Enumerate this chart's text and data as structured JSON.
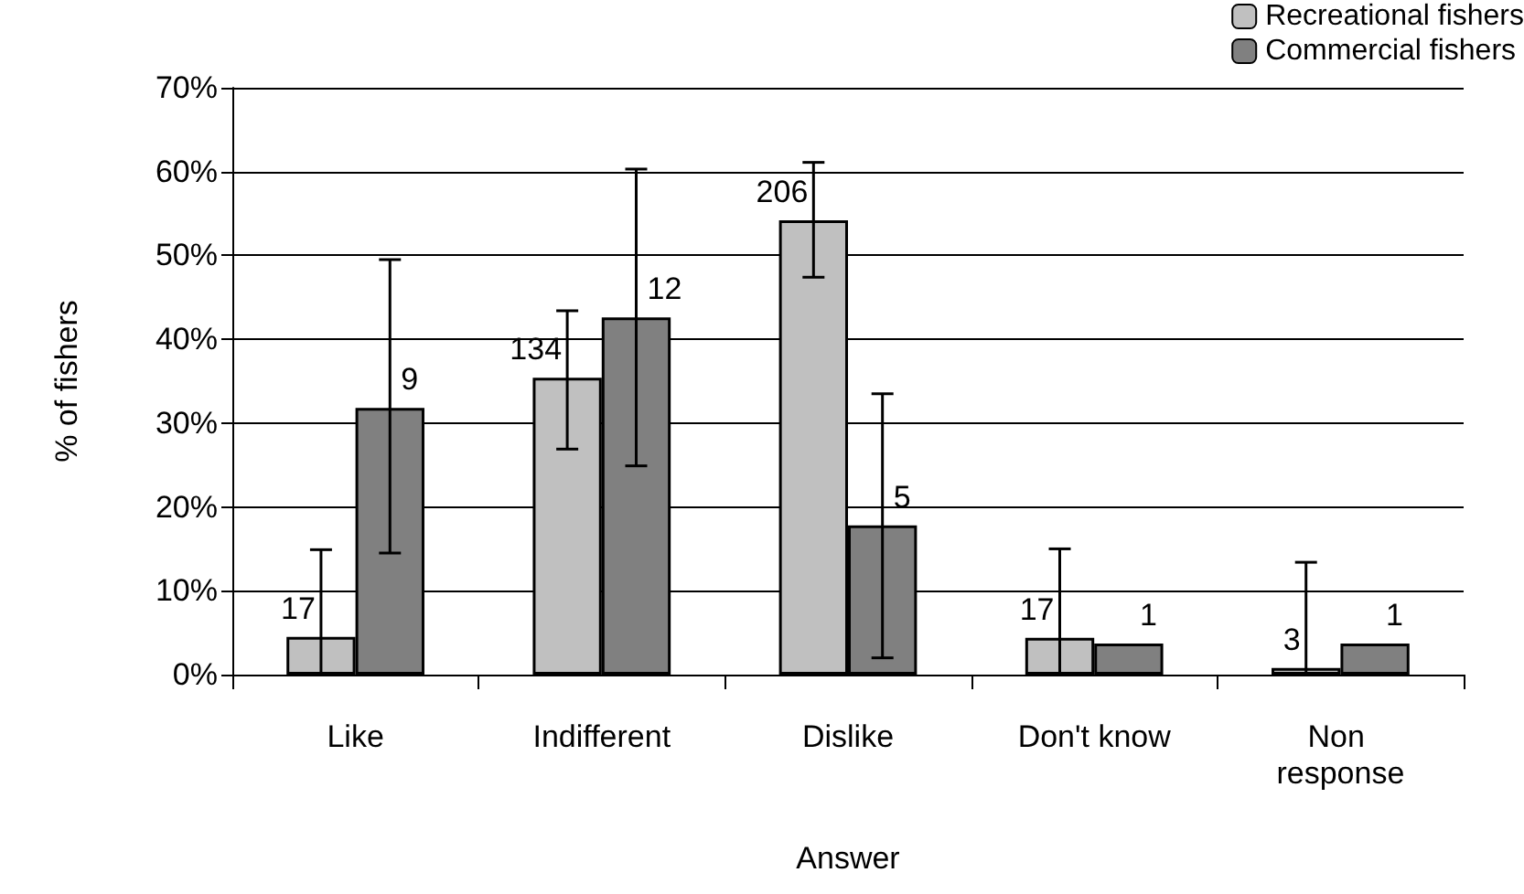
{
  "chart_data": {
    "type": "bar",
    "xlabel": "Answer",
    "ylabel": "% of fishers",
    "categories": [
      "Like",
      "Indifferent",
      "Dislike",
      "Don't know",
      "Non response"
    ],
    "series": [
      {
        "name": "Recreational fishers",
        "color": "#c0c0c0",
        "values": [
          4.5,
          35.4,
          54.2,
          4.4,
          0.8
        ],
        "errors": [
          [
            0,
            14.9
          ],
          [
            26.9,
            43.4
          ],
          [
            47.4,
            61.1
          ],
          [
            0,
            15.0
          ],
          [
            0,
            13.4
          ]
        ]
      },
      {
        "name": "Commercial fishers",
        "color": "#808080",
        "values": [
          31.8,
          42.6,
          17.8,
          3.7,
          3.7
        ],
        "errors": [
          [
            14.5,
            49.5
          ],
          [
            24.9,
            60.3
          ],
          [
            2.0,
            33.5
          ],
          null,
          null
        ]
      }
    ],
    "annotations": [
      {
        "text": "17",
        "x": "Like",
        "y": 4.5
      },
      {
        "text": "9",
        "x": "Like",
        "y": 31.8
      },
      {
        "text": "134",
        "x": "Indifferent",
        "y": 35.4
      },
      {
        "text": "12",
        "x": "Indifferent",
        "y": 42.6
      },
      {
        "text": "206",
        "x": "Dislike",
        "y": 54.2
      },
      {
        "text": "5",
        "x": "Dislike",
        "y": 17.8
      },
      {
        "text": "17",
        "x": "Don't know",
        "y": 4.4
      },
      {
        "text": "1",
        "x": "Don't know",
        "y": 3.7
      },
      {
        "text": "3",
        "x": "Non response",
        "y": 0.8
      },
      {
        "text": "1",
        "x": "Non response",
        "y": 3.7
      }
    ],
    "ylim": [
      0,
      70
    ],
    "yticks": [
      {
        "value": 0,
        "label": "0%"
      },
      {
        "value": 10,
        "label": "10%"
      },
      {
        "value": 20,
        "label": "20%"
      },
      {
        "value": 30,
        "label": "30%"
      },
      {
        "value": 40,
        "label": "40%"
      },
      {
        "value": 50,
        "label": "50%"
      },
      {
        "value": 60,
        "label": "60%"
      },
      {
        "value": 70,
        "label": "70%"
      }
    ],
    "grid": "y",
    "legend": "top right"
  }
}
